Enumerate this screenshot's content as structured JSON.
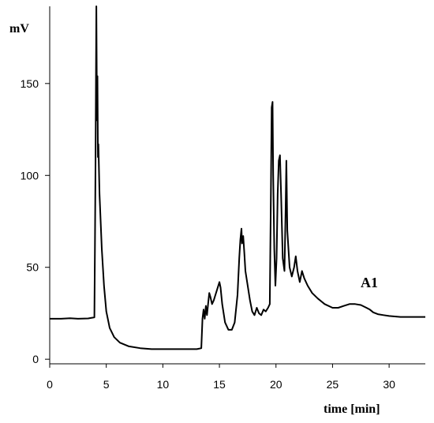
{
  "chart_data": {
    "type": "line",
    "title": "",
    "ylabel": "mV",
    "xlabel": "time [min]",
    "xlim": [
      0,
      33.2
    ],
    "ylim": [
      -2.5,
      192
    ],
    "xticks": [
      0,
      5,
      10,
      15,
      20,
      25,
      30
    ],
    "yticks": [
      0,
      50,
      100,
      150
    ],
    "grid": false,
    "legend": "none",
    "line_color": "#000000",
    "annotations": [
      {
        "label": "A1",
        "x": 27.5,
        "y": 38
      }
    ],
    "series": [
      {
        "points": [
          [
            0,
            22
          ],
          [
            1.0,
            22
          ],
          [
            1.8,
            22.3
          ],
          [
            2.5,
            22
          ],
          [
            3.4,
            22.2
          ],
          [
            3.95,
            22.8
          ],
          [
            4.0,
            60
          ],
          [
            4.05,
            110
          ],
          [
            4.12,
            192
          ],
          [
            4.18,
            130
          ],
          [
            4.22,
            154
          ],
          [
            4.26,
            110
          ],
          [
            4.3,
            117
          ],
          [
            4.4,
            90
          ],
          [
            4.6,
            60
          ],
          [
            4.8,
            40
          ],
          [
            5.0,
            26
          ],
          [
            5.3,
            17
          ],
          [
            5.7,
            12
          ],
          [
            6.2,
            9
          ],
          [
            7.0,
            7
          ],
          [
            8.0,
            6
          ],
          [
            9.0,
            5.5
          ],
          [
            10.0,
            5.5
          ],
          [
            11.0,
            5.5
          ],
          [
            12.0,
            5.5
          ],
          [
            13.0,
            5.5
          ],
          [
            13.4,
            6
          ],
          [
            13.5,
            22
          ],
          [
            13.6,
            27
          ],
          [
            13.7,
            22
          ],
          [
            13.8,
            29
          ],
          [
            13.9,
            24
          ],
          [
            14.0,
            30
          ],
          [
            14.1,
            36
          ],
          [
            14.2,
            34
          ],
          [
            14.35,
            30
          ],
          [
            14.5,
            32
          ],
          [
            14.6,
            34
          ],
          [
            14.8,
            38
          ],
          [
            15.0,
            42
          ],
          [
            15.1,
            39
          ],
          [
            15.25,
            30
          ],
          [
            15.5,
            20
          ],
          [
            15.8,
            16
          ],
          [
            16.1,
            16
          ],
          [
            16.35,
            20
          ],
          [
            16.6,
            35
          ],
          [
            16.75,
            55
          ],
          [
            16.85,
            65
          ],
          [
            16.95,
            71
          ],
          [
            17.0,
            63
          ],
          [
            17.1,
            67
          ],
          [
            17.2,
            58
          ],
          [
            17.3,
            48
          ],
          [
            17.5,
            40
          ],
          [
            17.7,
            32
          ],
          [
            17.9,
            26
          ],
          [
            18.1,
            24
          ],
          [
            18.3,
            28
          ],
          [
            18.5,
            25
          ],
          [
            18.7,
            24
          ],
          [
            18.9,
            27
          ],
          [
            19.1,
            26
          ],
          [
            19.3,
            28
          ],
          [
            19.45,
            30
          ],
          [
            19.55,
            90
          ],
          [
            19.62,
            137
          ],
          [
            19.7,
            140
          ],
          [
            19.75,
            100
          ],
          [
            19.85,
            60
          ],
          [
            19.95,
            40
          ],
          [
            20.05,
            55
          ],
          [
            20.15,
            90
          ],
          [
            20.25,
            108
          ],
          [
            20.35,
            111
          ],
          [
            20.45,
            90
          ],
          [
            20.6,
            55
          ],
          [
            20.75,
            48
          ],
          [
            20.85,
            80
          ],
          [
            20.92,
            108
          ],
          [
            21.0,
            70
          ],
          [
            21.2,
            50
          ],
          [
            21.4,
            45
          ],
          [
            21.6,
            50
          ],
          [
            21.75,
            56
          ],
          [
            21.9,
            48
          ],
          [
            22.1,
            42
          ],
          [
            22.3,
            48
          ],
          [
            22.5,
            44
          ],
          [
            22.8,
            40
          ],
          [
            23.2,
            36
          ],
          [
            23.7,
            33
          ],
          [
            24.3,
            30
          ],
          [
            25.0,
            28
          ],
          [
            25.5,
            28
          ],
          [
            26.0,
            29
          ],
          [
            26.5,
            30
          ],
          [
            27.0,
            30
          ],
          [
            27.5,
            29.5
          ],
          [
            28.0,
            28
          ],
          [
            28.3,
            27
          ],
          [
            28.6,
            25.5
          ],
          [
            29.0,
            24.5
          ],
          [
            29.5,
            24
          ],
          [
            30.0,
            23.5
          ],
          [
            31.0,
            23
          ],
          [
            32.0,
            23
          ],
          [
            33.2,
            23
          ]
        ]
      }
    ]
  }
}
